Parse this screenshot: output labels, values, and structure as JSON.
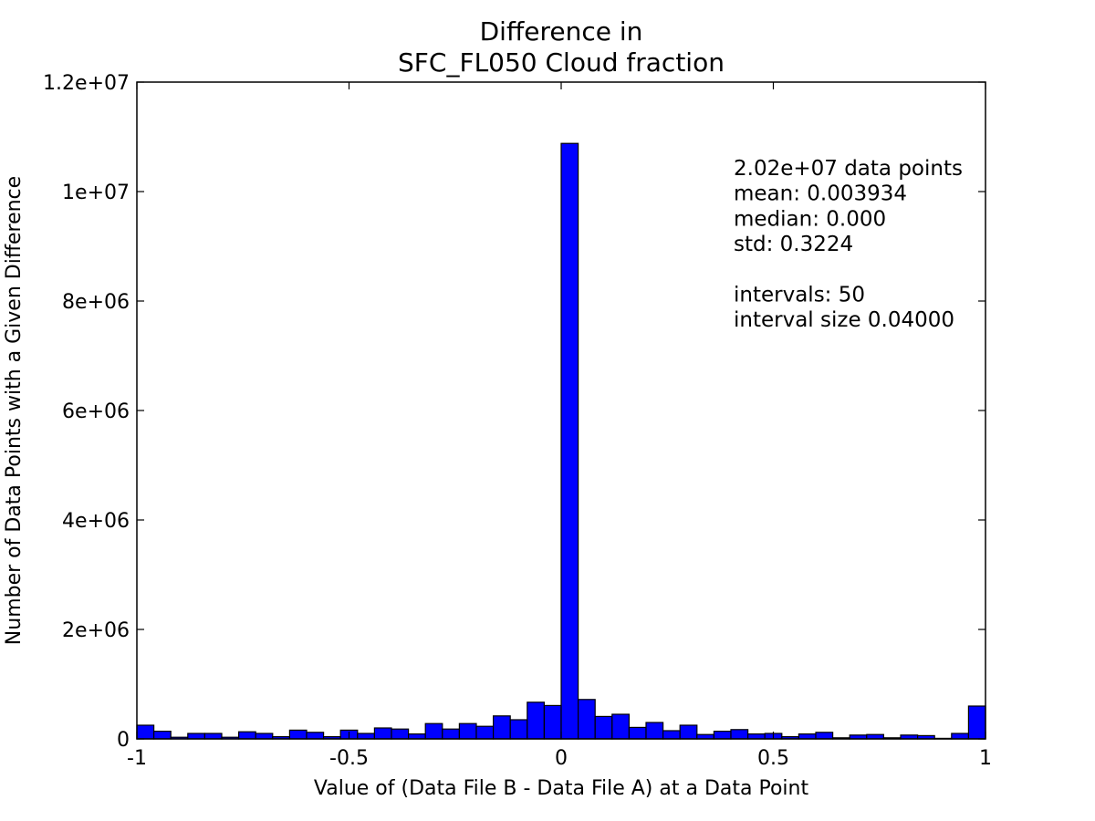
{
  "chart_data": {
    "type": "bar",
    "title": [
      "Difference in",
      "SFC_FL050 Cloud fraction"
    ],
    "xlabel": "Value of (Data File B - Data File A) at a Data Point",
    "ylabel": "Number of Data Points with a Given Difference",
    "xlim": [
      -1,
      1
    ],
    "ylim": [
      0,
      12000000
    ],
    "x_ticks": [
      {
        "value": -1,
        "label": "-1"
      },
      {
        "value": -0.5,
        "label": "-0.5"
      },
      {
        "value": 0,
        "label": "0"
      },
      {
        "value": 0.5,
        "label": "0.5"
      },
      {
        "value": 1,
        "label": "1"
      }
    ],
    "y_ticks": [
      {
        "value": 0,
        "label": "0"
      },
      {
        "value": 2000000,
        "label": "2e+06"
      },
      {
        "value": 4000000,
        "label": "4e+06"
      },
      {
        "value": 6000000,
        "label": "6e+06"
      },
      {
        "value": 8000000,
        "label": "8e+06"
      },
      {
        "value": 10000000,
        "label": "1e+07"
      },
      {
        "value": 12000000,
        "label": "1.2e+07"
      }
    ],
    "bin_start": -1,
    "bin_width": 0.04,
    "values": [
      250000,
      140000,
      30000,
      100000,
      100000,
      30000,
      130000,
      100000,
      40000,
      160000,
      120000,
      40000,
      160000,
      100000,
      200000,
      180000,
      90000,
      280000,
      180000,
      280000,
      230000,
      420000,
      350000,
      670000,
      610000,
      10880000,
      720000,
      410000,
      450000,
      210000,
      300000,
      150000,
      250000,
      80000,
      140000,
      170000,
      90000,
      100000,
      40000,
      90000,
      120000,
      20000,
      70000,
      80000,
      20000,
      70000,
      60000,
      10000,
      100000,
      600000
    ],
    "bar_color": "#0000ff",
    "grid": false,
    "annotation_lines": [
      "2.02e+07 data points",
      "mean: 0.003934",
      "median: 0.000",
      "std: 0.3224",
      "",
      "intervals: 50",
      "interval size 0.04000"
    ]
  }
}
